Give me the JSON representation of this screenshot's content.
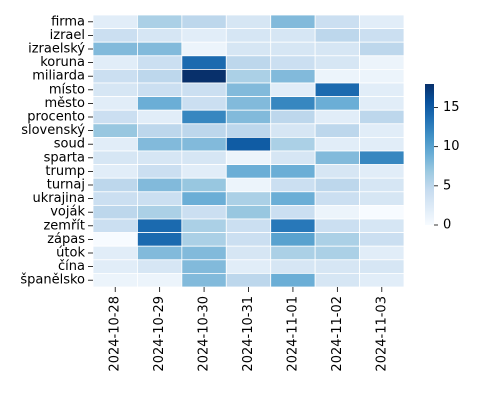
{
  "chart_data": {
    "type": "heatmap",
    "title": "",
    "xlabel": "",
    "ylabel": "",
    "x": [
      "2024-10-28",
      "2024-10-29",
      "2024-10-30",
      "2024-10-31",
      "2024-11-01",
      "2024-11-02",
      "2024-11-03"
    ],
    "y": [
      "firma",
      "izrael",
      "izraelský",
      "koruna",
      "miliarda",
      "místo",
      "město",
      "procento",
      "slovenský",
      "soud",
      "sparta",
      "trump",
      "turnaj",
      "ukrajina",
      "voják",
      "zemřít",
      "zápas",
      "útok",
      "čína",
      "španělsko"
    ],
    "values": [
      [
        2,
        6,
        5,
        3,
        8,
        4,
        2
      ],
      [
        4,
        3,
        2,
        3,
        3,
        5,
        4
      ],
      [
        8,
        8,
        1,
        3,
        3,
        3,
        5
      ],
      [
        2,
        4,
        14,
        5,
        4,
        3,
        1
      ],
      [
        4,
        5,
        18,
        6,
        8,
        1,
        1
      ],
      [
        3,
        4,
        4,
        8,
        2,
        14,
        2
      ],
      [
        2,
        9,
        4,
        8,
        12,
        9,
        2
      ],
      [
        4,
        2,
        12,
        8,
        5,
        2,
        5
      ],
      [
        7,
        5,
        5,
        5,
        3,
        5,
        2
      ],
      [
        2,
        8,
        8,
        15,
        6,
        2,
        2
      ],
      [
        3,
        3,
        3,
        1,
        3,
        8,
        12
      ],
      [
        2,
        4,
        2,
        9,
        9,
        3,
        2
      ],
      [
        5,
        8,
        7,
        1,
        4,
        5,
        3
      ],
      [
        4,
        4,
        9,
        6,
        9,
        4,
        3
      ],
      [
        5,
        6,
        4,
        7,
        4,
        1,
        0
      ],
      [
        4,
        14,
        6,
        4,
        13,
        4,
        3
      ],
      [
        0,
        14,
        6,
        4,
        10,
        6,
        4
      ],
      [
        2,
        8,
        8,
        3,
        6,
        6,
        2
      ],
      [
        2,
        3,
        8,
        2,
        3,
        3,
        3
      ],
      [
        1,
        1,
        8,
        5,
        9,
        3,
        2
      ]
    ],
    "vmin": 0,
    "vmax": 18,
    "colormap": [
      "#f7fbff",
      "#deebf7",
      "#c6dbef",
      "#9ecae1",
      "#6baed6",
      "#4292c6",
      "#2171b5",
      "#08519c",
      "#08306b"
    ],
    "colorbar_ticks": [
      0,
      5,
      10,
      15
    ],
    "grid": false,
    "legend": "colorbar-right"
  }
}
